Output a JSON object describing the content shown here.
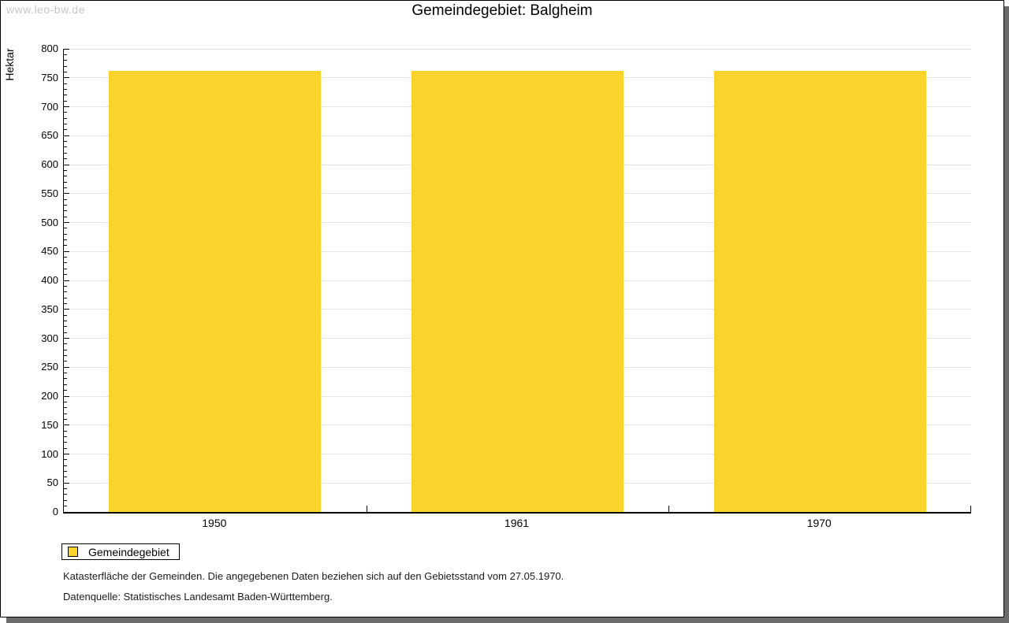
{
  "page": {
    "watermark": "www.leo-bw.de",
    "title": "Gemeindegebiet: Balgheim"
  },
  "chart_data": {
    "type": "bar",
    "title": "Gemeindegebiet: Balgheim",
    "categories": [
      "1950",
      "1961",
      "1970"
    ],
    "series": [
      {
        "name": "Gemeindegebiet",
        "values": [
          762,
          762,
          762
        ]
      }
    ],
    "xlabel": "",
    "ylabel": "Hektar",
    "ylim": [
      0,
      800
    ],
    "y_major_step": 50,
    "y_minor_step": 10,
    "grid": true,
    "legend_position": "bottom-left",
    "colors": {
      "bar_fill": "#FCD32B",
      "gridline": "#e3e3e3",
      "axis": "#000000",
      "watermark_text": "#c6c6c6"
    }
  },
  "legend": {
    "items": [
      {
        "label": "Gemeindegebiet",
        "color": "#FCD32B",
        "border": "#000000"
      }
    ]
  },
  "footnotes": [
    "Katasterfläche der Gemeinden. Die angegebenen Daten beziehen sich auf den Gebietsstand vom 27.05.1970.",
    "Datenquelle: Statistisches Landesamt Baden-Württemberg."
  ]
}
